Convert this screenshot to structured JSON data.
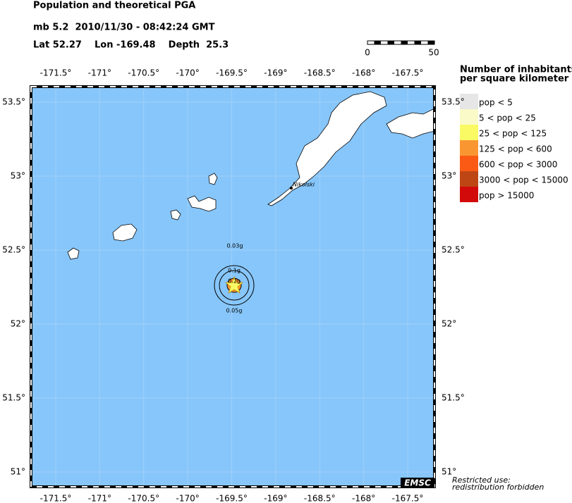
{
  "header": {
    "title": "Population and theoretical PGA",
    "event": "mb 5.2  2010/11/30 - 08:42:24 GMT",
    "location": "Lat 52.27    Lon -169.48    Depth  25.3"
  },
  "scale_bar": {
    "labels": [
      "0",
      "50"
    ]
  },
  "axes": {
    "lon_ticks": [
      {
        "value": -171.5,
        "label": "-171.5°"
      },
      {
        "value": -171,
        "label": "-171°"
      },
      {
        "value": -170.5,
        "label": "-170.5°"
      },
      {
        "value": -170,
        "label": "-170°"
      },
      {
        "value": -169.5,
        "label": "-169.5°"
      },
      {
        "value": -169,
        "label": "-169°"
      },
      {
        "value": -168.5,
        "label": "-168.5°"
      },
      {
        "value": -168,
        "label": "-168°"
      },
      {
        "value": -167.5,
        "label": "-167.5°"
      }
    ],
    "lat_ticks": [
      {
        "value": 53.5,
        "label": "53.5°"
      },
      {
        "value": 53,
        "label": "53°"
      },
      {
        "value": 52.5,
        "label": "52.5°"
      },
      {
        "value": 52,
        "label": "52°"
      },
      {
        "value": 51.5,
        "label": "51.5°"
      },
      {
        "value": 51,
        "label": "51°"
      }
    ]
  },
  "legend": {
    "title": [
      "Number of inhabitants",
      "per square kilometer"
    ],
    "items": [
      {
        "label": "pop < 5",
        "color": "#e6e6e6"
      },
      {
        "label": "5 < pop < 25",
        "color": "#fafac8"
      },
      {
        "label": "25 < pop < 125",
        "color": "#fafa64"
      },
      {
        "label": "125 < pop < 600",
        "color": "#fa9632"
      },
      {
        "label": "600 < pop < 3000",
        "color": "#fa5a14"
      },
      {
        "label": "3000 < pop < 15000",
        "color": "#be4614"
      },
      {
        "label": "pop > 15000",
        "color": "#d20a0a"
      }
    ]
  },
  "map": {
    "place": "Nikolski",
    "contours": [
      "0.03g",
      "0.1g",
      "0.2g",
      "0.05g"
    ]
  },
  "footer": {
    "badge": "EMSC",
    "notice": [
      "Restricted use:",
      "redistribution forbidden"
    ]
  }
}
